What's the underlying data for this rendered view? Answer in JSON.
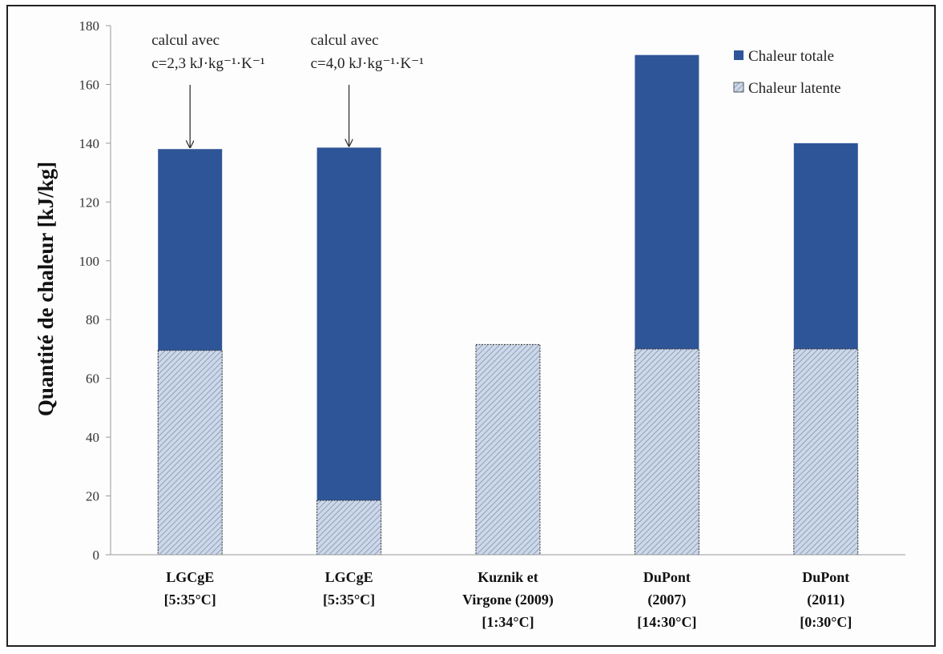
{
  "chart_data": {
    "type": "bar",
    "stacked": false,
    "categories": [
      [
        "LGCgE",
        "[5:35°C]"
      ],
      [
        "LGCgE",
        "[5:35°C]"
      ],
      [
        "Kuznik et",
        "Virgone (2009)",
        "[1:34°C]"
      ],
      [
        "DuPont",
        "(2007)",
        "[14:30°C]"
      ],
      [
        "DuPont",
        "(2011)",
        "[0:30°C]"
      ]
    ],
    "series": [
      {
        "name": "Chaleur totale",
        "values": [
          138,
          138.5,
          null,
          170,
          140
        ],
        "color": "#2e5597",
        "pattern": "solid"
      },
      {
        "name": "Chaleur latente",
        "values": [
          69.5,
          18.5,
          71.5,
          70,
          70
        ],
        "color": "#b9c8de",
        "pattern": "hatched"
      }
    ],
    "title": "",
    "xlabel": "",
    "ylabel": "Quantité de chaleur [kJ/kg]",
    "ylim": [
      0,
      180
    ],
    "yticks": [
      0,
      20,
      40,
      60,
      80,
      100,
      120,
      140,
      160,
      180
    ],
    "grid": false,
    "legend": "top-right",
    "annotations": [
      {
        "category_index": 0,
        "lines": [
          "calcul avec",
          "c=2,3 kJ·kg⁻¹·K⁻¹"
        ]
      },
      {
        "category_index": 1,
        "lines": [
          "calcul avec",
          "c=4,0 kJ·kg⁻¹·K⁻¹"
        ]
      }
    ]
  }
}
